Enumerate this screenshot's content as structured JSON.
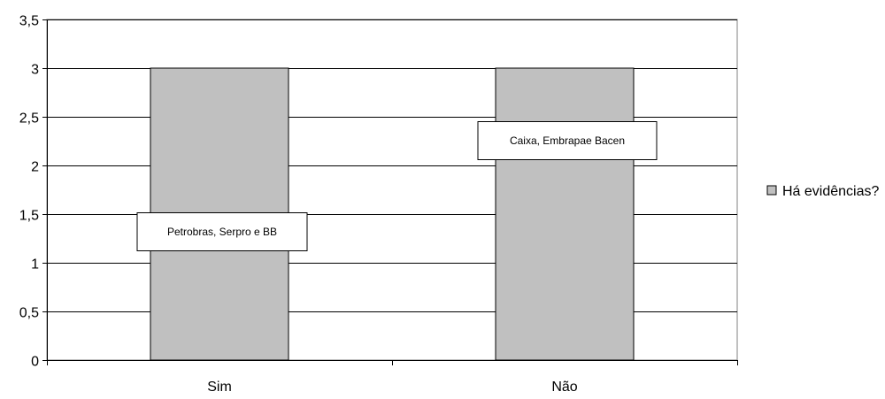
{
  "chart_data": {
    "type": "bar",
    "categories": [
      "Sim",
      "Não"
    ],
    "series": [
      {
        "name": "Há evidências?",
        "values": [
          3,
          3
        ],
        "color": "#c0c0c0"
      }
    ],
    "ylim": [
      0,
      3.5
    ],
    "y_ticks": [
      0,
      0.5,
      1,
      1.5,
      2,
      2.5,
      3,
      3.5
    ],
    "y_tick_labels": [
      "0",
      "0,5",
      "1",
      "1,5",
      "2",
      "2,5",
      "3",
      "3,5"
    ],
    "grid": true,
    "legend_position": "right",
    "annotations": [
      {
        "category": "Sim",
        "text": "Petrobras, Serpro e BB"
      },
      {
        "category": "Não",
        "text": "Caixa, Embrapae Bacen"
      }
    ]
  }
}
